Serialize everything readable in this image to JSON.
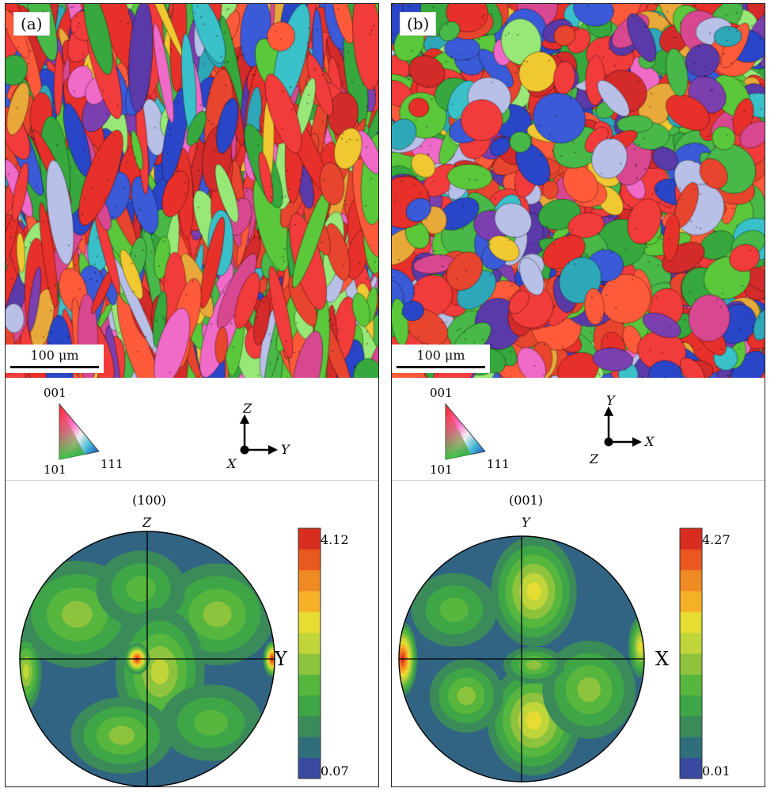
{
  "panel_a": {
    "label": "(a)",
    "scale_bar": "100 μm",
    "ipf_key": {
      "top": "001",
      "bottom_left": "101",
      "bottom_right": "111"
    },
    "axes": {
      "up": "Z",
      "right": "Y",
      "out": "X"
    },
    "pole_figure": {
      "title": "(100)",
      "top_label": "Z",
      "right_label": "Y",
      "colorbar": {
        "max": "4.12",
        "min": "0.07"
      }
    }
  },
  "panel_b": {
    "label": "(b)",
    "scale_bar": "100 μm",
    "ipf_key": {
      "top": "001",
      "bottom_left": "101",
      "bottom_right": "111"
    },
    "axes": {
      "up": "Y",
      "right": "X",
      "out": "Z"
    },
    "pole_figure": {
      "title": "(001)",
      "top_label": "Y",
      "right_label": "X",
      "colorbar": {
        "max": "4.27",
        "min": "0.01"
      }
    }
  },
  "colors": {
    "pf_levels": [
      "#3a4aa0",
      "#2f6e7a",
      "#3b8a5a",
      "#3ea646",
      "#56b63e",
      "#8ec33d",
      "#c0d53a",
      "#e6dc32",
      "#f6b129",
      "#f08a22",
      "#e9591f",
      "#d92d20"
    ],
    "ebsd_palette": [
      "#e8302a",
      "#f23b3b",
      "#e8452e",
      "#d32a2a",
      "#ff5a3a",
      "#2a46c8",
      "#3a5ad8",
      "#5a3aa8",
      "#7b3fb0",
      "#48b848",
      "#5ac83a",
      "#36a83e",
      "#2ea8b8",
      "#3ac0c8",
      "#f0c832",
      "#e8a83a",
      "#f06ac8",
      "#d84890",
      "#b8c0e8",
      "#98e878"
    ],
    "ebsd_weights_a": [
      5,
      5,
      4,
      3,
      3,
      2,
      2,
      1,
      1,
      2,
      2,
      2,
      1,
      1,
      1,
      1,
      2,
      2,
      1,
      1
    ],
    "ebsd_weights_b": [
      4,
      4,
      3,
      2,
      2,
      2,
      2,
      2,
      2,
      3,
      3,
      2,
      1,
      1,
      1,
      1,
      1,
      1,
      2,
      1
    ]
  }
}
